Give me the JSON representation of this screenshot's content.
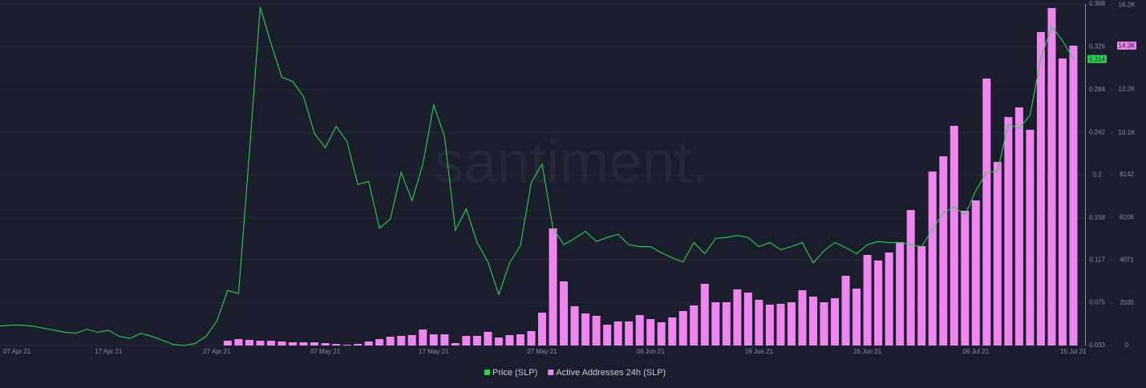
{
  "chart_data": {
    "type": "bar_line",
    "watermark": "santiment.",
    "x": [
      "2021-04-07",
      "2021-04-08",
      "2021-04-09",
      "2021-04-10",
      "2021-04-11",
      "2021-04-12",
      "2021-04-13",
      "2021-04-14",
      "2021-04-15",
      "2021-04-16",
      "2021-04-17",
      "2021-04-18",
      "2021-04-19",
      "2021-04-20",
      "2021-04-21",
      "2021-04-22",
      "2021-04-23",
      "2021-04-24",
      "2021-04-25",
      "2021-04-26",
      "2021-04-27",
      "2021-04-28",
      "2021-04-29",
      "2021-04-30",
      "2021-05-01",
      "2021-05-02",
      "2021-05-03",
      "2021-05-04",
      "2021-05-05",
      "2021-05-06",
      "2021-05-07",
      "2021-05-08",
      "2021-05-09",
      "2021-05-10",
      "2021-05-11",
      "2021-05-12",
      "2021-05-13",
      "2021-05-14",
      "2021-05-15",
      "2021-05-16",
      "2021-05-17",
      "2021-05-18",
      "2021-05-19",
      "2021-05-20",
      "2021-05-21",
      "2021-05-22",
      "2021-05-23",
      "2021-05-24",
      "2021-05-25",
      "2021-05-26",
      "2021-05-27",
      "2021-05-28",
      "2021-05-29",
      "2021-05-30",
      "2021-05-31",
      "2021-06-01",
      "2021-06-02",
      "2021-06-03",
      "2021-06-04",
      "2021-06-05",
      "2021-06-06",
      "2021-06-07",
      "2021-06-08",
      "2021-06-09",
      "2021-06-10",
      "2021-06-11",
      "2021-06-12",
      "2021-06-13",
      "2021-06-14",
      "2021-06-15",
      "2021-06-16",
      "2021-06-17",
      "2021-06-18",
      "2021-06-19",
      "2021-06-20",
      "2021-06-21",
      "2021-06-22",
      "2021-06-23",
      "2021-06-24",
      "2021-06-25",
      "2021-06-26",
      "2021-06-27",
      "2021-06-28",
      "2021-06-29",
      "2021-06-30",
      "2021-07-01",
      "2021-07-02",
      "2021-07-03",
      "2021-07-04",
      "2021-07-05",
      "2021-07-06",
      "2021-07-07",
      "2021-07-08",
      "2021-07-09",
      "2021-07-10",
      "2021-07-11",
      "2021-07-12",
      "2021-07-13",
      "2021-07-14",
      "2021-07-15"
    ],
    "xlim": [
      "2021-04-07",
      "2021-07-16"
    ],
    "xticks": [
      {
        "value": "2021-04-07",
        "label": "07 Apr 21"
      },
      {
        "value": "2021-04-17",
        "label": "17 Apr 21"
      },
      {
        "value": "2021-04-27",
        "label": "27 Apr 21"
      },
      {
        "value": "2021-05-07",
        "label": "07 May 21"
      },
      {
        "value": "2021-05-17",
        "label": "17 May 21"
      },
      {
        "value": "2021-05-27",
        "label": "27 May 21"
      },
      {
        "value": "2021-06-06",
        "label": "06 Jun 21"
      },
      {
        "value": "2021-06-16",
        "label": "16 Jun 21"
      },
      {
        "value": "2021-06-26",
        "label": "26 Jun 21"
      },
      {
        "value": "2021-07-06",
        "label": "06 Jul 21"
      },
      {
        "value": "2021-07-15",
        "label": "15 Jul 21"
      }
    ],
    "ylim": [
      0.033,
      0.368
    ],
    "yticks": [
      0.033,
      0.075,
      0.117,
      0.158,
      0.2,
      0.242,
      0.284,
      0.326,
      0.368
    ],
    "y2lim": [
      0,
      16284
    ],
    "y2ticks": [
      0,
      2035,
      4071,
      6106,
      8142,
      {
        "value": 10140,
        "label": "10.1K"
      },
      {
        "value": 12213,
        "label": "12.2K"
      },
      {
        "value": 14248,
        "label": "14.2K"
      },
      {
        "value": 16240,
        "label": "16.2K"
      }
    ],
    "grid": true,
    "legend": "bottom",
    "series": [
      {
        "name": "Price (SLP)",
        "type": "line",
        "color": "#2fcf54",
        "axis": "y",
        "values": [
          0.052,
          0.053,
          0.053,
          0.052,
          0.05,
          0.048,
          0.046,
          0.045,
          0.049,
          0.046,
          0.048,
          0.042,
          0.04,
          0.045,
          0.042,
          0.038,
          0.034,
          0.033,
          0.035,
          0.042,
          0.057,
          0.087,
          0.084,
          0.222,
          0.365,
          0.329,
          0.296,
          0.292,
          0.277,
          0.241,
          0.227,
          0.248,
          0.233,
          0.191,
          0.194,
          0.148,
          0.157,
          0.203,
          0.175,
          0.211,
          0.269,
          0.238,
          0.146,
          0.167,
          0.134,
          0.115,
          0.083,
          0.114,
          0.131,
          0.193,
          0.211,
          0.148,
          0.132,
          0.138,
          0.145,
          0.135,
          0.139,
          0.142,
          0.132,
          0.13,
          0.13,
          0.124,
          0.119,
          0.115,
          0.134,
          0.123,
          0.138,
          0.139,
          0.141,
          0.139,
          0.13,
          0.134,
          0.127,
          0.13,
          0.134,
          0.114,
          0.126,
          0.134,
          0.129,
          0.123,
          0.132,
          0.135,
          0.134,
          0.134,
          0.132,
          0.13,
          0.147,
          0.163,
          0.169,
          0.161,
          0.185,
          0.203,
          0.204,
          0.25,
          0.246,
          0.259,
          0.315,
          0.346,
          0.332,
          0.314
        ]
      },
      {
        "name": "Active Addresses 24h (SLP)",
        "type": "bar",
        "color": "#ef86ef",
        "axis": "y2",
        "values": [
          null,
          null,
          null,
          null,
          null,
          null,
          null,
          null,
          null,
          null,
          null,
          null,
          null,
          null,
          null,
          null,
          null,
          null,
          null,
          null,
          null,
          229,
          306,
          268,
          229,
          229,
          191,
          153,
          153,
          153,
          115,
          76,
          38,
          76,
          191,
          306,
          421,
          459,
          497,
          765,
          535,
          535,
          115,
          459,
          459,
          650,
          382,
          497,
          535,
          688,
          1567,
          5582,
          3058,
          1873,
          1529,
          1415,
          994,
          1147,
          1147,
          1453,
          1262,
          1109,
          1338,
          1644,
          1912,
          2944,
          2064,
          2064,
          2676,
          2523,
          2179,
          1950,
          1988,
          2064,
          2638,
          2332,
          2064,
          2256,
          3326,
          2714,
          4320,
          4052,
          4435,
          4932,
          6461,
          4741,
          8296,
          9022,
          10475,
          6423,
          6920,
          12731,
          8755,
          10896,
          11354,
          10284,
          14948,
          16095,
          13686,
          14300
        ]
      }
    ],
    "annotations": [
      {
        "text": "0.314",
        "value": 0.314,
        "axis": "y",
        "color": "#2fcf54"
      },
      {
        "text": "14.3K",
        "value": 14300,
        "axis": "y2",
        "color": "#ef86ef"
      }
    ]
  }
}
